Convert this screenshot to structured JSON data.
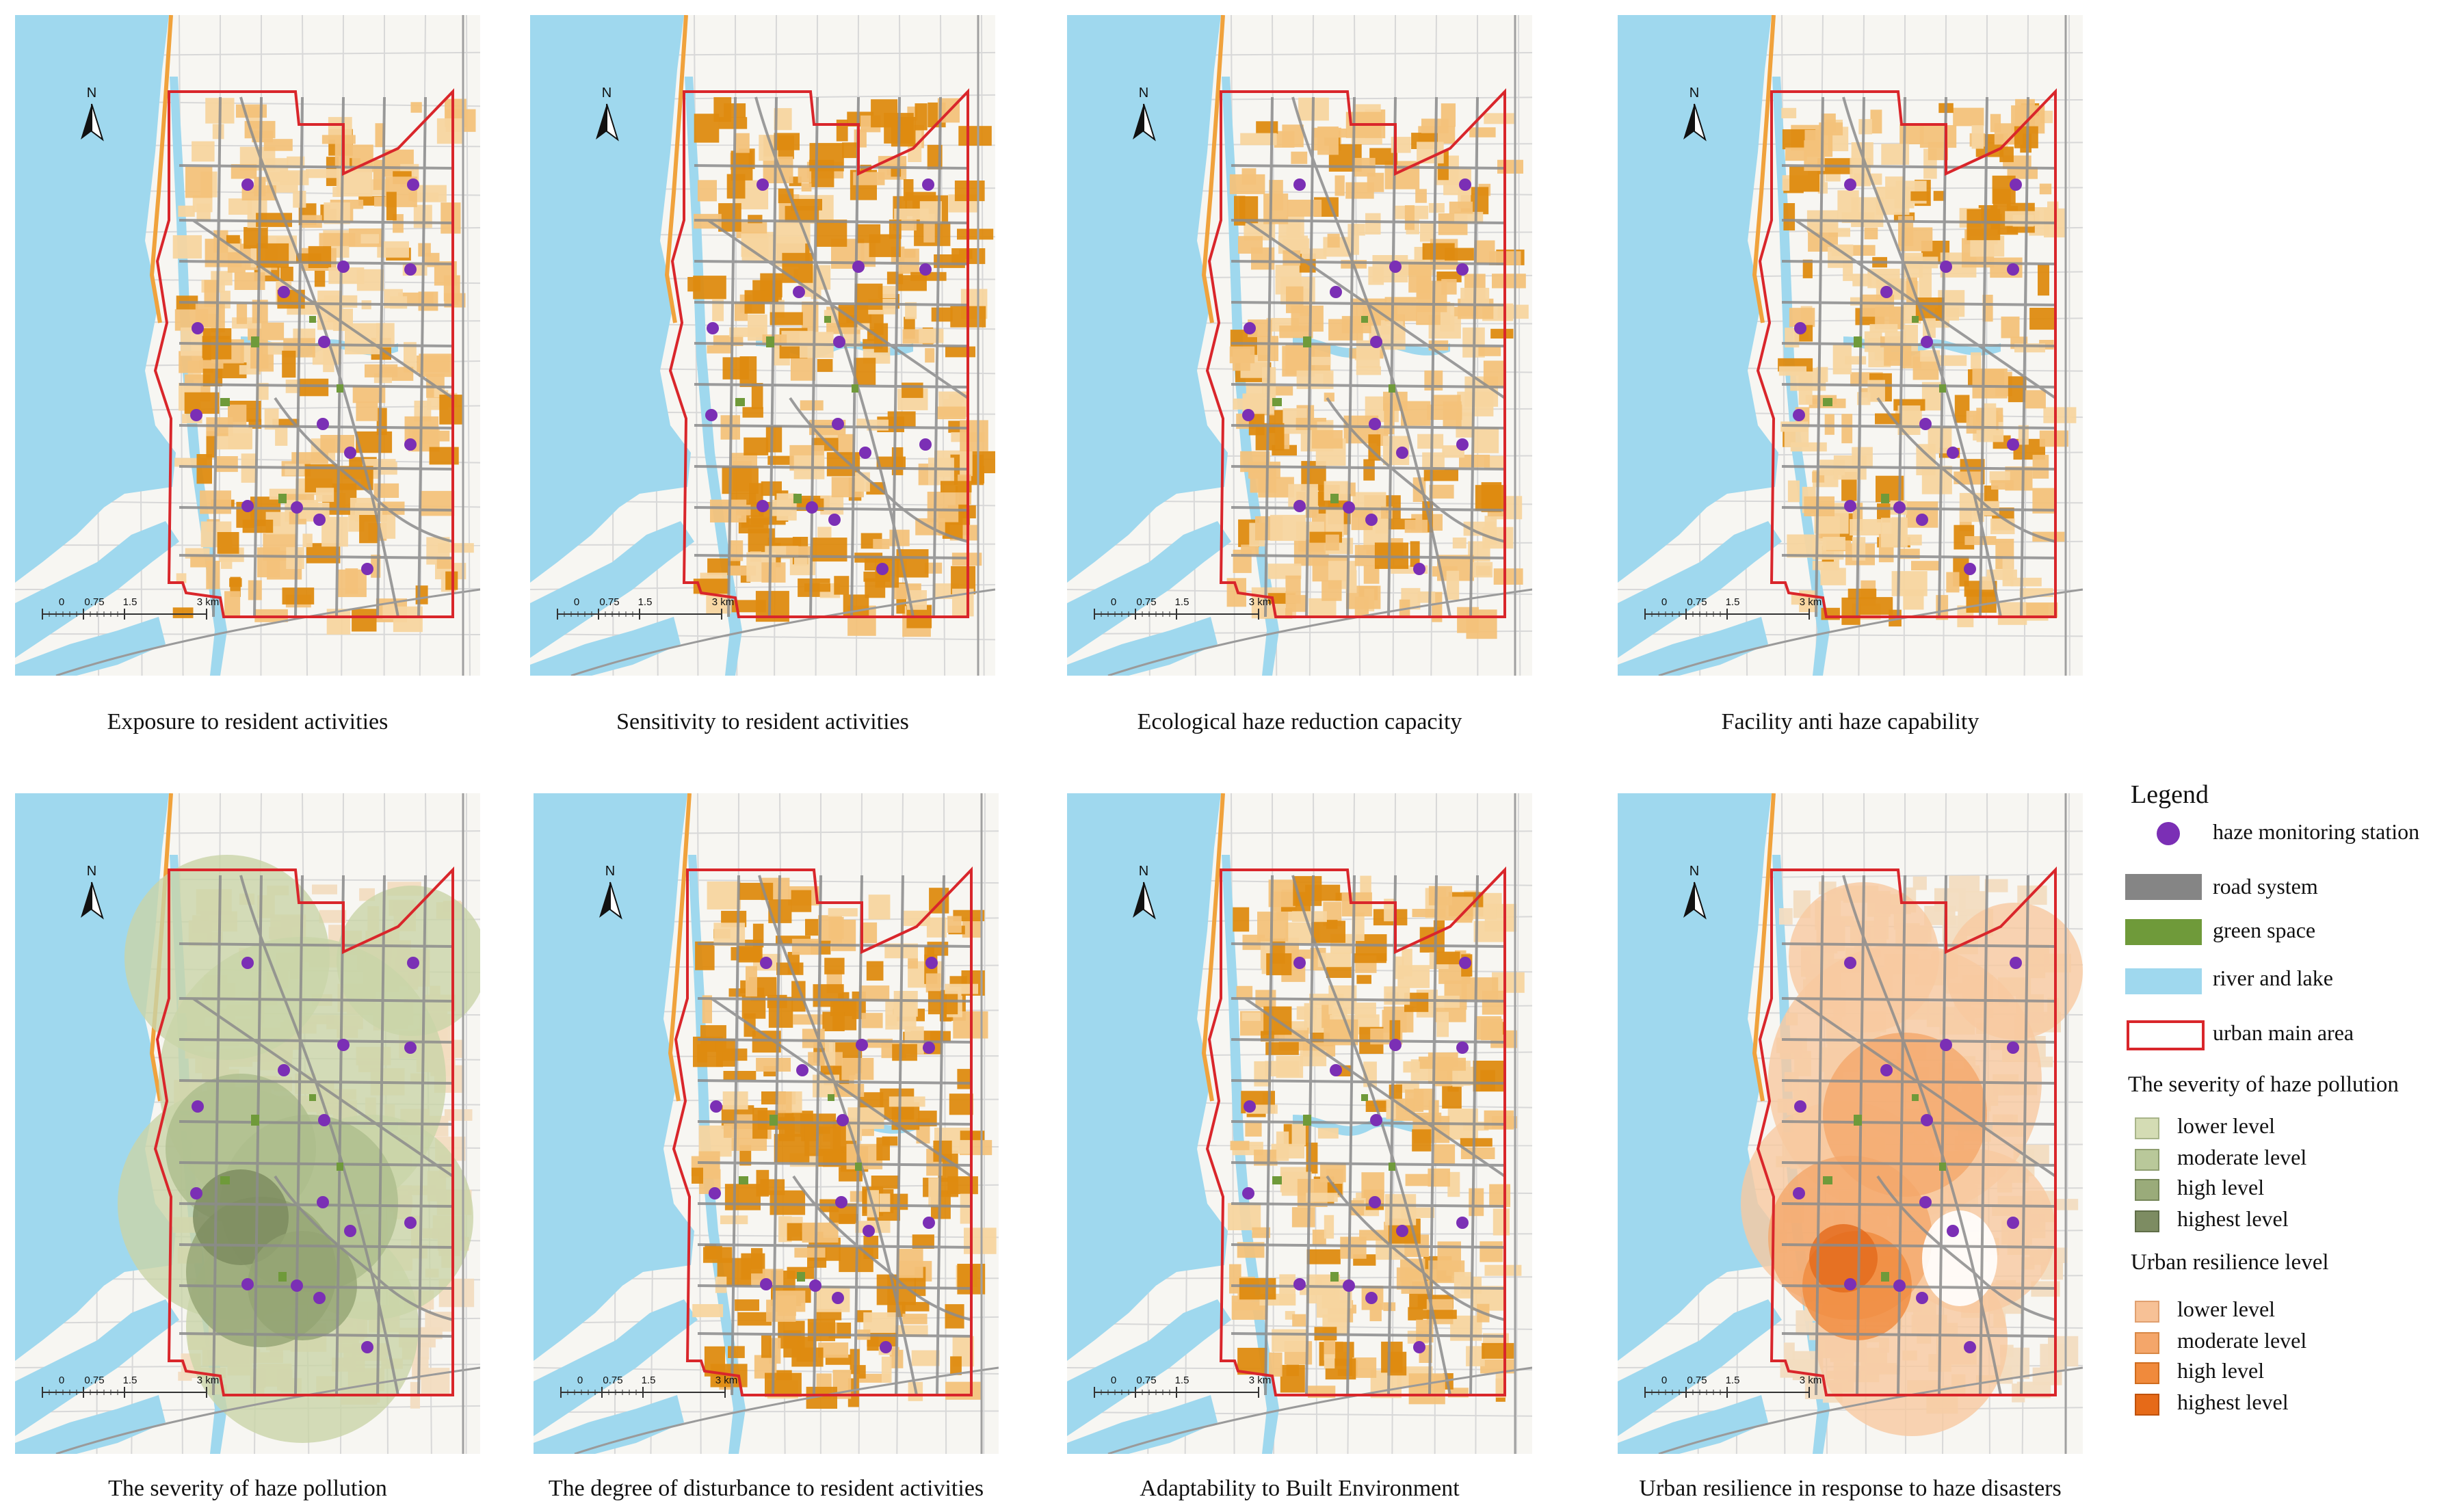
{
  "panels": [
    {
      "id": "exposure",
      "caption": "Exposure to resident activities",
      "style": "fill"
    },
    {
      "id": "sensitivity",
      "caption": "Sensitivity to resident activities",
      "style": "fill"
    },
    {
      "id": "ecological",
      "caption": "Ecological haze reduction capacity",
      "style": "fill"
    },
    {
      "id": "facility",
      "caption": "Facility anti haze capability",
      "style": "fill"
    },
    {
      "id": "severity",
      "caption": "The severity of haze pollution",
      "style": "severity"
    },
    {
      "id": "disturbance",
      "caption": "The degree of disturbance to resident activities",
      "style": "fill"
    },
    {
      "id": "adaptability",
      "caption": "Adaptability to Built Environment",
      "style": "fill"
    },
    {
      "id": "resilience",
      "caption": "Urban resilience in response to haze disasters",
      "style": "resilience"
    }
  ],
  "map": {
    "north_label": "N",
    "scale_labels": [
      "0",
      "0.75",
      "1.5",
      "3 km"
    ]
  },
  "legend": {
    "title": "Legend",
    "items": [
      {
        "label": "haze monitoring station",
        "color": "#7b2fb5"
      },
      {
        "label": "road system",
        "color": "#858585"
      },
      {
        "label": "green space",
        "color": "#6f9a3a"
      },
      {
        "label": "river and lake",
        "color": "#9fd8ee"
      },
      {
        "label": "urban main area",
        "color": "#d9262b"
      }
    ],
    "severity": {
      "title": "The severity of haze pollution",
      "levels": [
        {
          "label": "lower level",
          "color": "#d4dcb4"
        },
        {
          "label": "moderate level",
          "color": "#b9c89a"
        },
        {
          "label": "high level",
          "color": "#9aab7a"
        },
        {
          "label": "highest level",
          "color": "#7d8c62"
        }
      ]
    },
    "resilience": {
      "title": "Urban resilience level",
      "levels": [
        {
          "label": "lower level",
          "color": "#f7c196"
        },
        {
          "label": "moderate level",
          "color": "#f4a66a"
        },
        {
          "label": "high level",
          "color": "#f08a3c"
        },
        {
          "label": "highest level",
          "color": "#e66a18"
        }
      ]
    }
  }
}
